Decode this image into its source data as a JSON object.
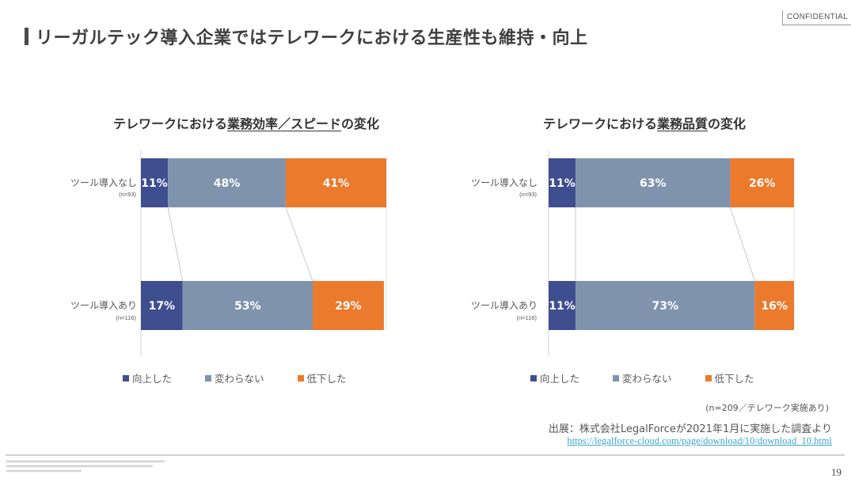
{
  "header": {
    "confidential": "CONFIDENTIAL",
    "title": "リーガルテック導入企業ではテレワークにおける生産性も維持・向上"
  },
  "colors": {
    "improved": "#3f4e8f",
    "unchanged": "#7f93ad",
    "declined": "#eb7a2d",
    "connector": "#c9c9c9"
  },
  "legend": [
    {
      "label": "向上した",
      "color_key": "improved"
    },
    {
      "label": "変わらない",
      "color_key": "unchanged"
    },
    {
      "label": "低下した",
      "color_key": "declined"
    }
  ],
  "chart_data": [
    {
      "type": "bar",
      "orientation": "horizontal-stacked-100",
      "title_prefix": "テレワークにおける",
      "title_underlined": "業務効率／スピード",
      "title_suffix": "の変化",
      "categories": [
        "ツール導入なし",
        "ツール導入あり"
      ],
      "category_n": [
        "(n=93)",
        "(n=116)"
      ],
      "series": [
        {
          "name": "向上した",
          "values": [
            11,
            17
          ]
        },
        {
          "name": "変わらない",
          "values": [
            48,
            53
          ]
        },
        {
          "name": "低下した",
          "values": [
            41,
            29
          ]
        }
      ],
      "value_labels": [
        [
          "11%",
          "48%",
          "41%"
        ],
        [
          "17%",
          "53%",
          "29%"
        ]
      ],
      "xlim": [
        0,
        100
      ],
      "legend_position": "bottom"
    },
    {
      "type": "bar",
      "orientation": "horizontal-stacked-100",
      "title_prefix": "テレワークにおける",
      "title_underlined": "業務品質",
      "title_suffix": "の変化",
      "categories": [
        "ツール導入なし",
        "ツール導入あり"
      ],
      "category_n": [
        "(n=93)",
        "(n=116)"
      ],
      "series": [
        {
          "name": "向上した",
          "values": [
            11,
            11
          ]
        },
        {
          "name": "変わらない",
          "values": [
            63,
            73
          ]
        },
        {
          "name": "低下した",
          "values": [
            26,
            16
          ]
        }
      ],
      "value_labels": [
        [
          "11%",
          "63%",
          "26%"
        ],
        [
          "11%",
          "73%",
          "16%"
        ]
      ],
      "xlim": [
        0,
        100
      ],
      "legend_position": "bottom"
    }
  ],
  "footnotes": {
    "note": "(n=209／テレワーク実施あり)",
    "source": "出展：株式会社LegalForceが2021年1月に実施した調査より",
    "url": "https://legalforce-cloud.com/page/download/10/download_10.html"
  },
  "footer": {
    "page_number": "19"
  }
}
